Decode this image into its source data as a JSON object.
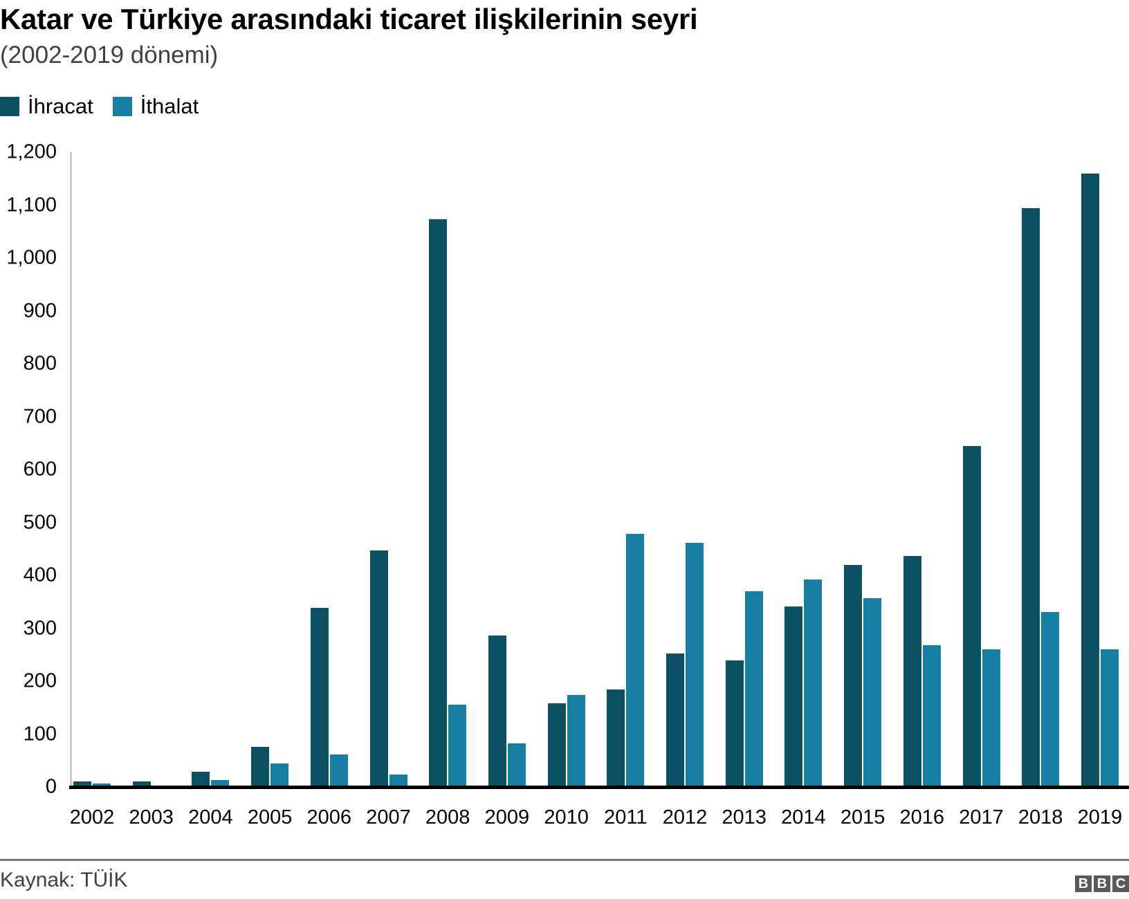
{
  "title": "Katar ve Türkiye arasındaki ticaret ilişkilerinin seyri",
  "subtitle": "(2002-2019 dönemi)",
  "legend": [
    {
      "label": "İhracat",
      "color": "#0d4f63"
    },
    {
      "label": "İthalat",
      "color": "#167fa2"
    }
  ],
  "y_ticks": [
    "0",
    "100",
    "200",
    "300",
    "400",
    "500",
    "600",
    "700",
    "800",
    "900",
    "1,000",
    "1,100",
    "1,200"
  ],
  "footer": {
    "source": "Kaynak: TÜİK",
    "logo": [
      "B",
      "B",
      "C"
    ]
  },
  "chart_data": {
    "type": "bar",
    "title": "Katar ve Türkiye arasındaki ticaret ilişkilerinin seyri",
    "subtitle": "(2002-2019 dönemi)",
    "xlabel": "",
    "ylabel": "",
    "ylim": [
      0,
      1200
    ],
    "grid": false,
    "legend_position": "top-left",
    "categories": [
      "2002",
      "2003",
      "2004",
      "2005",
      "2006",
      "2007",
      "2008",
      "2009",
      "2010",
      "2011",
      "2012",
      "2013",
      "2014",
      "2015",
      "2016",
      "2017",
      "2018",
      "2019"
    ],
    "series": [
      {
        "name": "İhracat",
        "color": "#0d4f63",
        "values": [
          11,
          11,
          29,
          76,
          339,
          447,
          1073,
          286,
          158,
          184,
          252,
          239,
          341,
          420,
          436,
          645,
          1094,
          1160
        ]
      },
      {
        "name": "İthalat",
        "color": "#167fa2",
        "values": [
          6,
          3,
          13,
          45,
          61,
          24,
          156,
          82,
          174,
          478,
          462,
          370,
          392,
          357,
          268,
          260,
          331,
          260
        ]
      }
    ],
    "source": "Kaynak: TÜİK"
  }
}
